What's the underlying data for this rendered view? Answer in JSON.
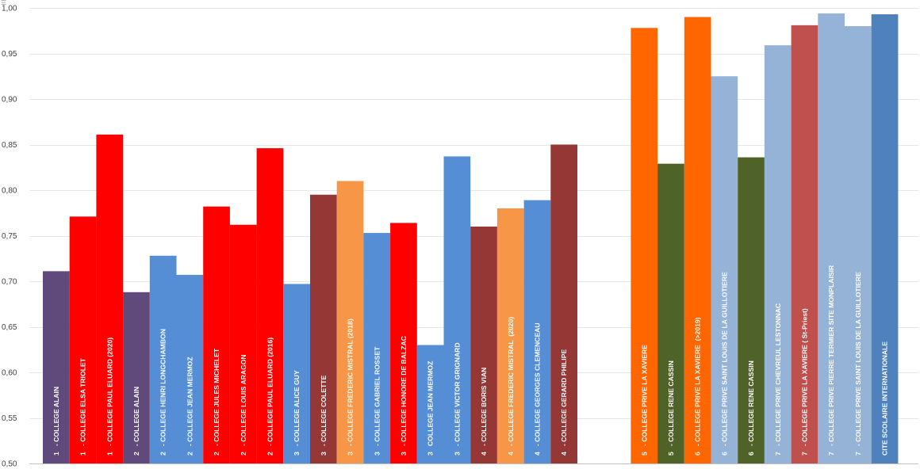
{
  "menu_icon": "hamburger-menu-icon",
  "chart_data": {
    "type": "bar",
    "title": "",
    "xlabel": "",
    "ylabel": "",
    "ylim": [
      0.5,
      1.0
    ],
    "yticks": [
      "0,50",
      "0,55",
      "0,60",
      "0,65",
      "0,70",
      "0,75",
      "0,80",
      "0,85",
      "0,90",
      "0,95",
      "1,00"
    ],
    "ytick_values": [
      0.5,
      0.55,
      0.6,
      0.65,
      0.7,
      0.75,
      0.8,
      0.85,
      0.9,
      0.95,
      1.0
    ],
    "grid": true,
    "legend": "none",
    "bars": [
      {
        "label": "1   - COLLEGE ALAIN",
        "value": 0.711,
        "color": "#604A7B"
      },
      {
        "label": "1   - COLLEGE ELSA TRIOLET",
        "value": 0.771,
        "color": "#FF0000"
      },
      {
        "label": "1   - COLLEGE PAUL ELUARD (2020)",
        "value": 0.861,
        "color": "#FF0000"
      },
      {
        "label": "2   - COLLEGE ALAIN",
        "value": 0.688,
        "color": "#604A7B"
      },
      {
        "label": "2   - COLLEGE HENRI LONGCHAMBON",
        "value": 0.728,
        "color": "#558ED5"
      },
      {
        "label": "2   - COLLEGE JEAN MERMOZ",
        "value": 0.707,
        "color": "#558ED5"
      },
      {
        "label": "2   - COLLEGE JULES MICHELET",
        "value": 0.782,
        "color": "#FF0000"
      },
      {
        "label": "2   - COLLEGE LOUIS ARAGON",
        "value": 0.762,
        "color": "#FF0000"
      },
      {
        "label": "2   - COLLEGE PAUL ELUARD (2016)",
        "value": 0.846,
        "color": "#FF0000"
      },
      {
        "label": "3   - COLLEGE ALICE GUY",
        "value": 0.697,
        "color": "#558ED5"
      },
      {
        "label": "3   - COLLEGE COLETTE",
        "value": 0.795,
        "color": "#953735"
      },
      {
        "label": "3   - COLLEGE FREDERIC MISTRAL (2018)",
        "value": 0.81,
        "color": "#F79646"
      },
      {
        "label": "3   - COLLEGE GABRIEL ROSSET",
        "value": 0.753,
        "color": "#558ED5"
      },
      {
        "label": "3   - COLLEGE HONORE DE BALZAC",
        "value": 0.764,
        "color": "#FF0000"
      },
      {
        "label": "3   COLLEGE JEAN MERMOZ",
        "value": 0.63,
        "color": "#558ED5"
      },
      {
        "label": "3   - COLLEGE VICTOR GRIGNARD",
        "value": 0.837,
        "color": "#558ED5"
      },
      {
        "label": "4   - COLLEGE BORIS VIAN",
        "value": 0.76,
        "color": "#953735"
      },
      {
        "label": "4   - COLLEGE FREDERIC MISTRAL  (2020)",
        "value": 0.78,
        "color": "#F79646"
      },
      {
        "label": "4   - COLLEGE GEORGES CLEMENCEAU",
        "value": 0.789,
        "color": "#558ED5"
      },
      {
        "label": "4   - COLLEGE GERARD PHILIPE",
        "value": 0.85,
        "color": "#953735"
      },
      {
        "label": "",
        "value": null,
        "color": "#ffffff"
      },
      {
        "label": "",
        "value": null,
        "color": "#ffffff"
      },
      {
        "label": "5   - COLLEGE PRIVE LA XAVIERE",
        "value": 0.978,
        "color": "#FF6600"
      },
      {
        "label": "5   - COLLEGE RENE CASSIN",
        "value": 0.829,
        "color": "#4F6228"
      },
      {
        "label": "6   - COLLEGE PRIVE LA XAVIERE  (>2019)",
        "value": 0.99,
        "color": "#FF6600"
      },
      {
        "label": "6   - COLLEGE PRIVE SAINT LOUIS DE LA GUILLOTIERE",
        "value": 0.925,
        "color": "#95B3D7"
      },
      {
        "label": "6   - COLLEGE RENE CASSIN",
        "value": 0.836,
        "color": "#4F6228"
      },
      {
        "label": "7   - COLLEGE PRIVE CHEVREUL LESTONNAC",
        "value": 0.959,
        "color": "#95B3D7"
      },
      {
        "label": "7   - COLLEGE PRIVE LA XAVIERE ( St-Priest)",
        "value": 0.981,
        "color": "#C0504D"
      },
      {
        "label": "7   - COLLEGE PRIVE PIERRE TERMIER SITE MONPLAISIR",
        "value": 0.994,
        "color": "#95B3D7"
      },
      {
        "label": "7   - COLLEGE PRIVE SAINT LOUIS DE LA GUILLOTIERE",
        "value": 0.98,
        "color": "#95B3D7"
      },
      {
        "label": "CITE SCOLAIRE INTERNATIONALE",
        "value": 0.993,
        "color": "#4F81BD"
      }
    ]
  }
}
